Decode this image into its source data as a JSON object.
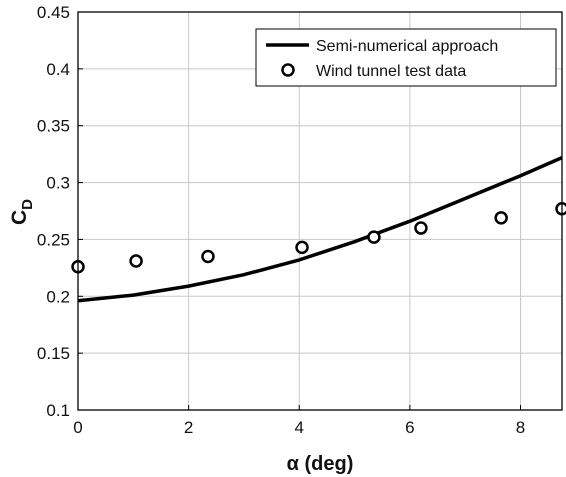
{
  "chart_data": {
    "type": "line",
    "xlabel": "α (deg)",
    "ylabel": "C",
    "ylabel_subscript": "D",
    "xlim": [
      0,
      8.75
    ],
    "ylim": [
      0.1,
      0.45
    ],
    "xticks": [
      0,
      2,
      4,
      6,
      8
    ],
    "xtick_labels": [
      "0",
      "2",
      "4",
      "6",
      "8"
    ],
    "yticks": [
      0.1,
      0.15,
      0.2,
      0.25,
      0.3,
      0.35,
      0.4,
      0.45
    ],
    "ytick_labels": [
      "0.1",
      "0.15",
      "0.2",
      "0.25",
      "0.3",
      "0.35",
      "0.4",
      "0.45"
    ],
    "grid": true,
    "legend_position": "top-right",
    "series": [
      {
        "name": "Semi-numerical approach",
        "style": "line",
        "color": "#000000",
        "x": [
          0,
          1,
          2,
          3,
          4,
          5,
          6,
          7,
          8,
          8.75
        ],
        "y": [
          0.196,
          0.201,
          0.209,
          0.219,
          0.232,
          0.248,
          0.266,
          0.286,
          0.306,
          0.322
        ]
      },
      {
        "name": "Wind tunnel test data",
        "style": "marker-circle",
        "color": "#000000",
        "x": [
          0,
          1.05,
          2.35,
          4.05,
          5.35,
          6.2,
          7.65,
          8.75
        ],
        "y": [
          0.226,
          0.231,
          0.235,
          0.243,
          0.252,
          0.26,
          0.269,
          0.277
        ]
      }
    ]
  }
}
